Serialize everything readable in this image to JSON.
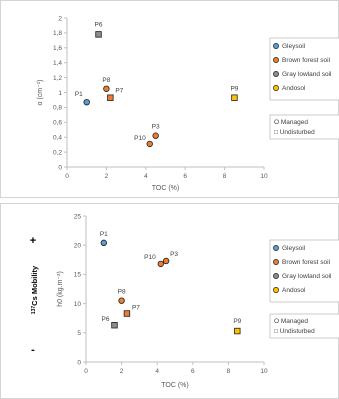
{
  "legend": {
    "soils": [
      {
        "name": "Gleysoil",
        "color": "#5b9bd5"
      },
      {
        "name": "Brown forest soil",
        "color": "#ed7d31"
      },
      {
        "name": "Gray lowland soil",
        "color": "#8c8c8c"
      },
      {
        "name": "Andosol",
        "color": "#ffc000"
      }
    ],
    "management": [
      {
        "name": "Managed",
        "symbol": "O"
      },
      {
        "name": "Undisturbed",
        "symbol": "□"
      }
    ]
  },
  "side_labels": {
    "mobility": "Cs Mobility",
    "mobility_superscript": "137",
    "plus": "+",
    "minus": "-"
  },
  "chart_data": [
    {
      "type": "scatter",
      "xlabel": "TOC (%)",
      "ylabel": "α (cm⁻¹)",
      "xlim": [
        0,
        10
      ],
      "ylim": [
        0,
        2
      ],
      "xticks": [
        "0",
        "2",
        "4",
        "6",
        "8",
        "10"
      ],
      "yticks": [
        "0",
        "0,2",
        "0,4",
        "0,6",
        "0,8",
        "1",
        "1,2",
        "1,4",
        "1,6",
        "1,8",
        "2"
      ],
      "points": [
        {
          "label": "P1",
          "x": 1.0,
          "y": 0.87,
          "soil": 0,
          "marker": "circle"
        },
        {
          "label": "P6",
          "x": 1.6,
          "y": 1.78,
          "soil": 2,
          "marker": "square"
        },
        {
          "label": "P8",
          "x": 2.0,
          "y": 1.05,
          "soil": 1,
          "marker": "circle"
        },
        {
          "label": "P7",
          "x": 2.2,
          "y": 0.93,
          "soil": 1,
          "marker": "square"
        },
        {
          "label": "P3",
          "x": 4.5,
          "y": 0.42,
          "soil": 1,
          "marker": "circle"
        },
        {
          "label": "P10",
          "x": 4.2,
          "y": 0.31,
          "soil": 1,
          "marker": "circle"
        },
        {
          "label": "P9",
          "x": 8.5,
          "y": 0.93,
          "soil": 3,
          "marker": "square"
        }
      ]
    },
    {
      "type": "scatter",
      "xlabel": "TOC (%)",
      "ylabel": "h0 (kg.m⁻²)",
      "xlim": [
        0,
        10
      ],
      "ylim": [
        0,
        25
      ],
      "xticks": [
        "0",
        "2",
        "4",
        "6",
        "8",
        "10"
      ],
      "yticks": [
        "0",
        "5",
        "10",
        "15",
        "20",
        "25"
      ],
      "points": [
        {
          "label": "P1",
          "x": 1.0,
          "y": 20.4,
          "soil": 0,
          "marker": "circle"
        },
        {
          "label": "P10",
          "x": 4.2,
          "y": 16.8,
          "soil": 1,
          "marker": "circle"
        },
        {
          "label": "P3",
          "x": 4.5,
          "y": 17.3,
          "soil": 1,
          "marker": "circle"
        },
        {
          "label": "P8",
          "x": 2.0,
          "y": 10.5,
          "soil": 1,
          "marker": "circle"
        },
        {
          "label": "P7",
          "x": 2.3,
          "y": 8.3,
          "soil": 1,
          "marker": "square"
        },
        {
          "label": "P6",
          "x": 1.6,
          "y": 6.3,
          "soil": 2,
          "marker": "square"
        },
        {
          "label": "P9",
          "x": 8.5,
          "y": 5.3,
          "soil": 3,
          "marker": "square"
        }
      ]
    }
  ]
}
